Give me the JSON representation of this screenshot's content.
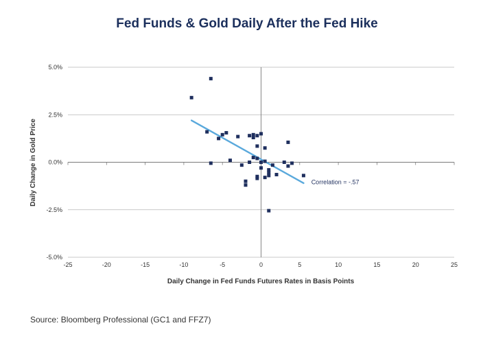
{
  "title": "Fed Funds & Gold Daily After the Fed Hike",
  "source": "Source: Bloomberg Professional (GC1 and FFZ7)",
  "colors": {
    "title": "#1b2f5c",
    "points": "#1f2f5e",
    "trendline": "#5aa9dc",
    "grid": "#b8b8b8",
    "axis": "#7a7a7a",
    "text": "#333333"
  },
  "chart_data": {
    "type": "scatter",
    "title": "Fed Funds & Gold Daily After the Fed Hike",
    "xlabel": "Daily Change in Fed Funds Futures Rates in Basis Points",
    "ylabel": "Daily Change in Gold Price",
    "xlim": [
      -25,
      25
    ],
    "ylim": [
      -5.0,
      5.0
    ],
    "x_ticks": [
      -25,
      -20,
      -15,
      -10,
      -5,
      0,
      5,
      10,
      15,
      20,
      25
    ],
    "x_tick_labels": [
      "-25",
      "-20",
      "-15",
      "-10",
      "-5",
      "0",
      "5",
      "10",
      "15",
      "20",
      "25"
    ],
    "y_ticks": [
      5.0,
      2.5,
      0.0,
      -2.5,
      -5.0
    ],
    "y_tick_labels": [
      "5.0%",
      "2.5%",
      "0.0%",
      "-2.5%",
      "-5.0%"
    ],
    "grid": "horizontal",
    "points": [
      {
        "x": -9.0,
        "y": 3.4
      },
      {
        "x": -6.5,
        "y": 4.4
      },
      {
        "x": -7.0,
        "y": 1.6
      },
      {
        "x": -6.5,
        "y": -0.05
      },
      {
        "x": -5.5,
        "y": 1.25
      },
      {
        "x": -5.0,
        "y": 1.45
      },
      {
        "x": -4.5,
        "y": 1.55
      },
      {
        "x": -4.0,
        "y": 0.1
      },
      {
        "x": -3.0,
        "y": 1.35
      },
      {
        "x": -2.5,
        "y": -0.15
      },
      {
        "x": -2.0,
        "y": -1.0
      },
      {
        "x": -2.0,
        "y": -1.2
      },
      {
        "x": -1.5,
        "y": 1.4
      },
      {
        "x": -1.5,
        "y": 0.0
      },
      {
        "x": -1.0,
        "y": 1.45
      },
      {
        "x": -1.0,
        "y": 1.3
      },
      {
        "x": -1.0,
        "y": 0.25
      },
      {
        "x": -0.5,
        "y": 0.85
      },
      {
        "x": -0.5,
        "y": 1.4
      },
      {
        "x": -0.5,
        "y": 0.2
      },
      {
        "x": -0.5,
        "y": -0.75
      },
      {
        "x": -0.5,
        "y": -0.85
      },
      {
        "x": 0.0,
        "y": 1.5
      },
      {
        "x": 0.0,
        "y": 0.0
      },
      {
        "x": 0.0,
        "y": -0.3
      },
      {
        "x": 0.5,
        "y": 0.75
      },
      {
        "x": 0.5,
        "y": 0.05
      },
      {
        "x": 0.5,
        "y": -0.8
      },
      {
        "x": 1.0,
        "y": -0.4
      },
      {
        "x": 1.0,
        "y": -0.55
      },
      {
        "x": 1.0,
        "y": -0.7
      },
      {
        "x": 1.0,
        "y": -2.55
      },
      {
        "x": 1.5,
        "y": -0.15
      },
      {
        "x": 2.0,
        "y": -0.65
      },
      {
        "x": 3.0,
        "y": 0.0
      },
      {
        "x": 3.5,
        "y": 1.05
      },
      {
        "x": 3.5,
        "y": -0.2
      },
      {
        "x": 4.0,
        "y": -0.05
      },
      {
        "x": 5.5,
        "y": -0.7
      }
    ],
    "trendline": {
      "x": [
        -9.0,
        5.5
      ],
      "y": [
        2.2,
        -1.1
      ]
    },
    "annotations": [
      {
        "text": "Correlation = -.57",
        "x": 6.5,
        "y": -1.05
      }
    ]
  }
}
